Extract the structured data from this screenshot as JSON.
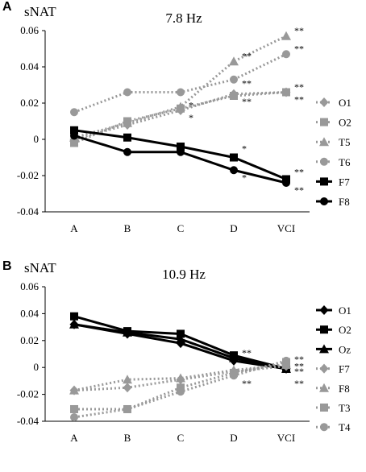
{
  "chart_data": [
    {
      "panel": "A",
      "type": "line",
      "title": "7.8 Hz",
      "ylabel": "sNAT",
      "xlabel": "",
      "categories": [
        "A",
        "B",
        "C",
        "D",
        "VCI"
      ],
      "ylim": [
        -0.04,
        0.06
      ],
      "yticks": [
        "-0.04",
        "-0.02",
        "0",
        "0.02",
        "0.04",
        "0.06"
      ],
      "grid": false,
      "legend": "right",
      "series": [
        {
          "name": "O1",
          "style": "dotted",
          "color": "#999999",
          "marker": "diamond",
          "values": [
            0.0,
            0.008,
            0.016,
            0.025,
            0.026
          ]
        },
        {
          "name": "O2",
          "style": "dotted",
          "color": "#999999",
          "marker": "square",
          "values": [
            -0.002,
            0.01,
            0.017,
            0.024,
            0.026
          ]
        },
        {
          "name": "T5",
          "style": "dotted",
          "color": "#999999",
          "marker": "triangle",
          "values": [
            0.001,
            0.009,
            0.018,
            0.043,
            0.057
          ]
        },
        {
          "name": "T6",
          "style": "dotted",
          "color": "#999999",
          "marker": "circle",
          "values": [
            0.015,
            0.026,
            0.026,
            0.033,
            0.047
          ]
        },
        {
          "name": "F7",
          "style": "solid",
          "color": "#000000",
          "marker": "square",
          "values": [
            0.005,
            0.001,
            -0.004,
            -0.01,
            -0.022
          ]
        },
        {
          "name": "F8",
          "style": "solid",
          "color": "#000000",
          "marker": "circle",
          "values": [
            0.002,
            -0.007,
            -0.007,
            -0.017,
            -0.024
          ]
        }
      ],
      "annotations": [
        {
          "text": "**",
          "x": "D",
          "y": 0.046
        },
        {
          "text": "**",
          "x": "VCI",
          "y": 0.06
        },
        {
          "text": "**",
          "x": "VCI",
          "y": 0.05
        },
        {
          "text": "**",
          "x": "D",
          "y": 0.031
        },
        {
          "text": "**",
          "x": "D",
          "y": 0.021
        },
        {
          "text": "*",
          "x": "C",
          "y": 0.019
        },
        {
          "text": "*",
          "x": "C",
          "y": 0.012
        },
        {
          "text": "**",
          "x": "VCI",
          "y": 0.029
        },
        {
          "text": "**",
          "x": "VCI",
          "y": 0.022
        },
        {
          "text": "*",
          "x": "D",
          "y": -0.005
        },
        {
          "text": "*",
          "x": "D",
          "y": -0.021
        },
        {
          "text": "**",
          "x": "VCI",
          "y": -0.018
        },
        {
          "text": "**",
          "x": "VCI",
          "y": -0.028
        }
      ]
    },
    {
      "panel": "B",
      "type": "line",
      "title": "10.9 Hz",
      "ylabel": "sNAT",
      "xlabel": "",
      "categories": [
        "A",
        "B",
        "C",
        "D",
        "VCI"
      ],
      "ylim": [
        -0.04,
        0.06
      ],
      "yticks": [
        "-0.04",
        "-0.02",
        "0",
        "0.02",
        "0.04",
        "0.06"
      ],
      "grid": false,
      "legend": "right",
      "series": [
        {
          "name": "O1",
          "style": "solid",
          "color": "#000000",
          "marker": "diamond",
          "values": [
            0.032,
            0.025,
            0.018,
            0.005,
            -0.001
          ]
        },
        {
          "name": "O2",
          "style": "solid",
          "color": "#000000",
          "marker": "square",
          "values": [
            0.038,
            0.027,
            0.025,
            0.009,
            -0.001
          ]
        },
        {
          "name": "Oz",
          "style": "solid",
          "color": "#000000",
          "marker": "triangle",
          "values": [
            0.032,
            0.026,
            0.021,
            0.007,
            -0.001
          ]
        },
        {
          "name": "F7",
          "style": "dotted",
          "color": "#999999",
          "marker": "diamond",
          "values": [
            -0.017,
            -0.015,
            -0.009,
            -0.003,
            0.001
          ]
        },
        {
          "name": "F8",
          "style": "dotted",
          "color": "#999999",
          "marker": "triangle",
          "values": [
            -0.017,
            -0.009,
            -0.008,
            -0.002,
            0.002
          ]
        },
        {
          "name": "T3",
          "style": "dotted",
          "color": "#999999",
          "marker": "square",
          "values": [
            -0.031,
            -0.031,
            -0.015,
            -0.004,
            0.004
          ]
        },
        {
          "name": "T4",
          "style": "dotted",
          "color": "#999999",
          "marker": "circle",
          "values": [
            -0.037,
            -0.031,
            -0.018,
            -0.006,
            0.005
          ]
        }
      ],
      "annotations": [
        {
          "text": "**",
          "x": "D",
          "y": 0.011
        },
        {
          "text": "*",
          "x": "D",
          "y": 0.004
        },
        {
          "text": "**",
          "x": "D",
          "y": -0.012
        },
        {
          "text": "**",
          "x": "VCI",
          "y": 0.006
        },
        {
          "text": "**",
          "x": "VCI",
          "y": 0.001
        },
        {
          "text": "**",
          "x": "VCI",
          "y": -0.003
        },
        {
          "text": "**",
          "x": "VCI",
          "y": -0.012
        }
      ]
    }
  ]
}
